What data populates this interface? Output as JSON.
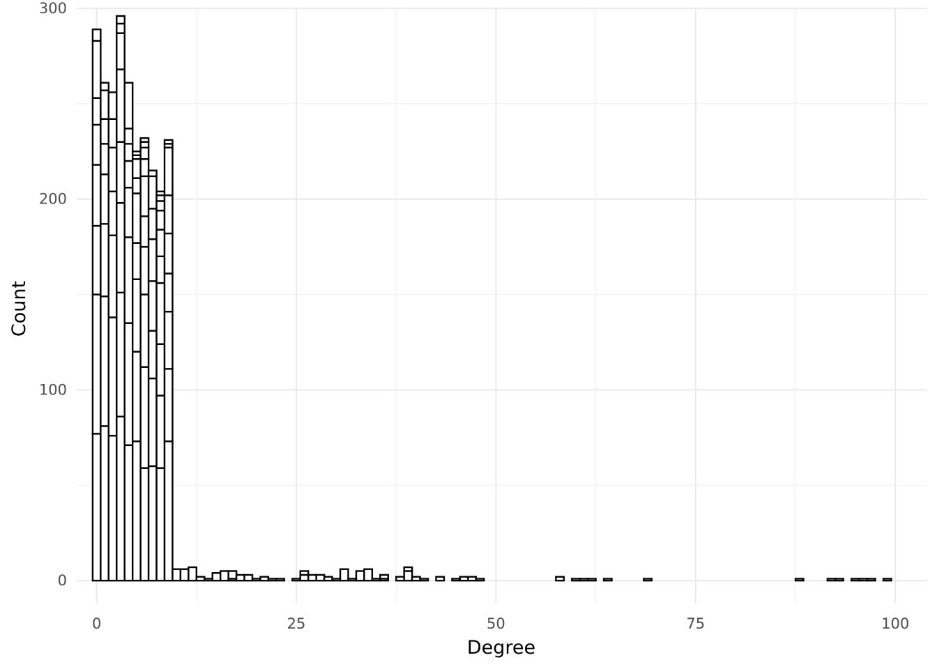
{
  "chart_data": {
    "type": "bar",
    "title": "",
    "xlabel": "Degree",
    "ylabel": "Count",
    "xlim": [
      -2.5,
      104
    ],
    "ylim": [
      -12,
      300
    ],
    "x_ticks": [
      0,
      25,
      50,
      75,
      100
    ],
    "y_ticks": [
      0,
      100,
      200,
      300
    ],
    "grid": true,
    "legend": "none",
    "bar_fill": "#ffffff",
    "bar_outline": "#000000",
    "bin_width": 1,
    "bins": [
      {
        "x": 0,
        "segments": [
          77,
          73,
          36,
          32,
          21,
          14,
          30,
          6,
          0,
          0,
          0,
          0,
          0,
          0,
          0,
          0,
          0
        ]
      },
      {
        "x": 1,
        "segments": [
          81,
          68,
          38,
          26,
          16,
          13,
          15,
          4,
          0,
          0,
          0,
          0,
          0,
          0,
          0,
          0,
          0
        ]
      },
      {
        "x": 2,
        "segments": [
          76,
          62,
          43,
          23,
          23,
          15,
          14,
          0,
          0,
          0,
          0,
          0,
          0,
          0,
          0,
          0,
          0
        ]
      },
      {
        "x": 3,
        "segments": [
          86,
          65,
          47,
          32,
          38,
          19,
          5,
          4,
          0,
          0,
          0,
          0,
          0,
          0,
          0,
          0,
          0
        ]
      },
      {
        "x": 4,
        "segments": [
          71,
          64,
          45,
          26,
          14,
          9,
          8,
          24,
          0,
          0,
          0,
          0,
          0,
          0,
          0,
          0,
          0
        ]
      },
      {
        "x": 5,
        "segments": [
          73,
          47,
          38,
          19,
          26,
          8,
          10,
          2,
          2,
          0,
          0,
          0,
          0,
          0,
          0,
          0,
          0
        ]
      },
      {
        "x": 6,
        "segments": [
          59,
          53,
          38,
          25,
          16,
          21,
          9,
          6,
          3,
          2,
          0,
          0,
          0,
          0,
          0,
          0,
          0
        ]
      },
      {
        "x": 7,
        "segments": [
          60,
          46,
          25,
          26,
          22,
          16,
          17,
          3,
          0,
          0,
          0,
          0,
          0,
          0,
          0,
          0,
          0
        ]
      },
      {
        "x": 8,
        "segments": [
          59,
          38,
          27,
          32,
          14,
          14,
          10,
          5,
          3,
          2,
          0,
          0,
          0,
          0,
          0,
          0,
          0
        ]
      },
      {
        "x": 9,
        "segments": [
          73,
          38,
          30,
          20,
          21,
          20,
          25,
          2,
          2,
          0,
          0,
          0,
          0,
          0,
          0,
          0,
          0
        ]
      },
      {
        "x": 10,
        "segments": [
          6
        ]
      },
      {
        "x": 11,
        "segments": [
          6
        ]
      },
      {
        "x": 12,
        "segments": [
          7
        ]
      },
      {
        "x": 13,
        "segments": [
          2
        ]
      },
      {
        "x": 14,
        "segments": [
          1
        ]
      },
      {
        "x": 15,
        "segments": [
          4
        ]
      },
      {
        "x": 16,
        "segments": [
          5
        ]
      },
      {
        "x": 17,
        "segments": [
          1,
          4
        ]
      },
      {
        "x": 18,
        "segments": [
          3
        ]
      },
      {
        "x": 19,
        "segments": [
          3
        ]
      },
      {
        "x": 20,
        "segments": [
          1
        ]
      },
      {
        "x": 21,
        "segments": [
          2
        ]
      },
      {
        "x": 22,
        "segments": [
          1
        ]
      },
      {
        "x": 23,
        "segments": [
          1
        ]
      },
      {
        "x": 25,
        "segments": [
          1
        ]
      },
      {
        "x": 26,
        "segments": [
          3,
          2
        ]
      },
      {
        "x": 27,
        "segments": [
          3
        ]
      },
      {
        "x": 28,
        "segments": [
          3
        ]
      },
      {
        "x": 29,
        "segments": [
          2
        ]
      },
      {
        "x": 30,
        "segments": [
          1
        ]
      },
      {
        "x": 31,
        "segments": [
          6
        ]
      },
      {
        "x": 32,
        "segments": [
          1
        ]
      },
      {
        "x": 33,
        "segments": [
          5
        ]
      },
      {
        "x": 34,
        "segments": [
          6
        ]
      },
      {
        "x": 35,
        "segments": [
          1
        ]
      },
      {
        "x": 36,
        "segments": [
          1,
          2
        ]
      },
      {
        "x": 38,
        "segments": [
          2
        ]
      },
      {
        "x": 39,
        "segments": [
          5,
          2
        ]
      },
      {
        "x": 40,
        "segments": [
          2
        ]
      },
      {
        "x": 41,
        "segments": [
          1
        ]
      },
      {
        "x": 43,
        "segments": [
          2
        ]
      },
      {
        "x": 45,
        "segments": [
          1
        ]
      },
      {
        "x": 46,
        "segments": [
          2
        ]
      },
      {
        "x": 47,
        "segments": [
          2
        ]
      },
      {
        "x": 48,
        "segments": [
          1
        ]
      },
      {
        "x": 58,
        "segments": [
          2
        ]
      },
      {
        "x": 60,
        "segments": [
          1
        ]
      },
      {
        "x": 61,
        "segments": [
          1
        ]
      },
      {
        "x": 62,
        "segments": [
          1
        ]
      },
      {
        "x": 64,
        "segments": [
          1
        ]
      },
      {
        "x": 69,
        "segments": [
          1
        ]
      },
      {
        "x": 88,
        "segments": [
          1
        ]
      },
      {
        "x": 92,
        "segments": [
          1
        ]
      },
      {
        "x": 93,
        "segments": [
          1
        ]
      },
      {
        "x": 95,
        "segments": [
          1
        ]
      },
      {
        "x": 96,
        "segments": [
          1
        ]
      },
      {
        "x": 97,
        "segments": [
          1
        ]
      },
      {
        "x": 99,
        "segments": [
          1
        ]
      }
    ]
  }
}
